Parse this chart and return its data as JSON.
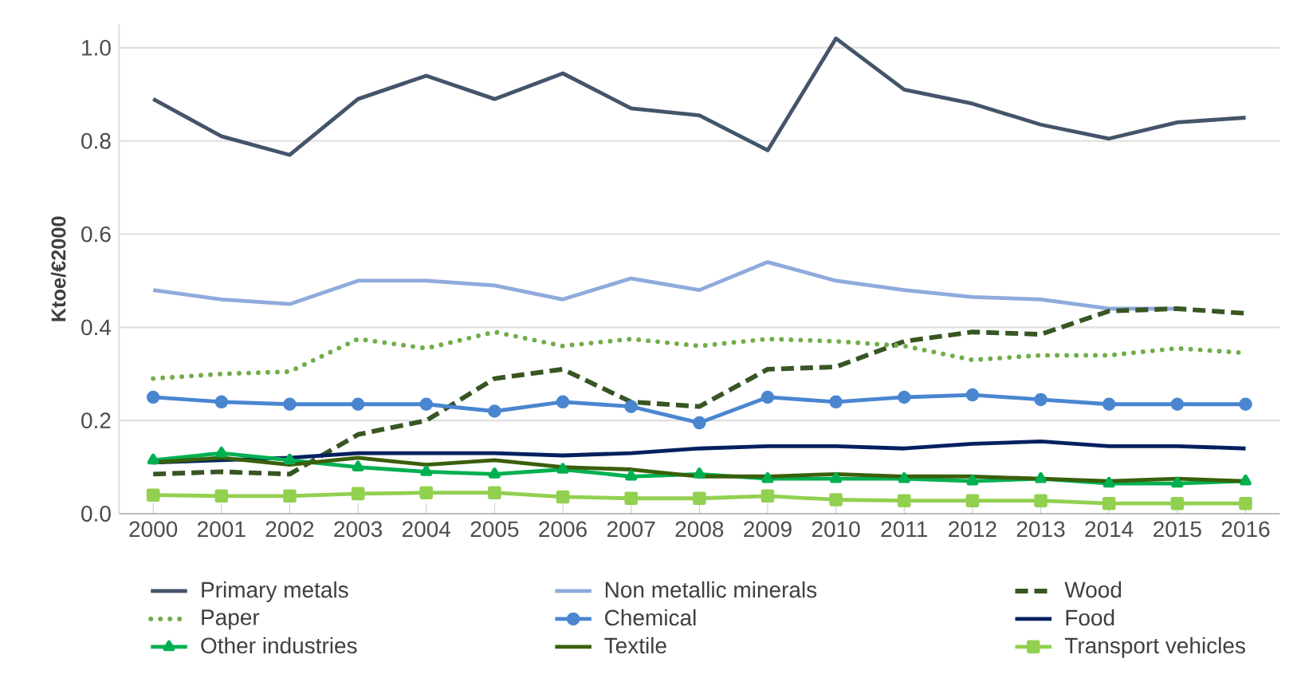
{
  "chart_data": {
    "type": "line",
    "ylabel": "Ktoe/€2000",
    "categories": [
      "2000",
      "2001",
      "2002",
      "2003",
      "2004",
      "2005",
      "2006",
      "2007",
      "2008",
      "2009",
      "2010",
      "2011",
      "2012",
      "2013",
      "2014",
      "2015",
      "2016"
    ],
    "ylim": [
      0,
      1.05
    ],
    "yticks": [
      {
        "value": 0,
        "label": "0.0"
      },
      {
        "value": 0.2,
        "label": "0.2"
      },
      {
        "value": 0.4,
        "label": "0.4"
      },
      {
        "value": 0.6,
        "label": "0.6"
      },
      {
        "value": 0.8,
        "label": "0.8"
      },
      {
        "value": 1.0,
        "label": "1.0"
      }
    ],
    "grid": "y",
    "legend": "bottom",
    "series": [
      {
        "name": "Primary metals",
        "color": "#44546a",
        "marker": "none",
        "line_style": "solid",
        "values": [
          0.89,
          0.81,
          0.77,
          0.89,
          0.94,
          0.89,
          0.945,
          0.87,
          0.855,
          0.78,
          1.02,
          0.91,
          0.88,
          0.835,
          0.805,
          0.84,
          0.85
        ]
      },
      {
        "name": "Non metallic minerals",
        "color": "#8faadc",
        "marker": "none",
        "line_style": "solid",
        "values": [
          0.48,
          0.46,
          0.45,
          0.5,
          0.5,
          0.49,
          0.46,
          0.505,
          0.48,
          0.54,
          0.5,
          0.48,
          0.465,
          0.46,
          0.44,
          0.44,
          null
        ]
      },
      {
        "name": "Wood",
        "color": "#375623",
        "marker": "none",
        "line_style": "dashed",
        "values": [
          0.085,
          0.09,
          0.085,
          0.17,
          0.2,
          0.29,
          0.31,
          0.24,
          0.23,
          0.31,
          0.315,
          0.37,
          0.39,
          0.385,
          0.435,
          0.44,
          0.43
        ]
      },
      {
        "name": "Paper",
        "color": "#70ad47",
        "marker": "none",
        "line_style": "dotted",
        "values": [
          0.29,
          0.3,
          0.305,
          0.375,
          0.355,
          0.39,
          0.36,
          0.375,
          0.36,
          0.375,
          0.37,
          0.36,
          0.33,
          0.34,
          0.34,
          0.355,
          0.345
        ]
      },
      {
        "name": "Chemical",
        "color": "#4a86d0",
        "marker": "circle",
        "line_style": "solid",
        "values": [
          0.25,
          0.24,
          0.235,
          0.235,
          0.235,
          0.22,
          0.24,
          0.23,
          0.195,
          0.25,
          0.24,
          0.25,
          0.255,
          0.245,
          0.235,
          0.235,
          0.235
        ]
      },
      {
        "name": "Food",
        "color": "#002060",
        "marker": "none",
        "line_style": "solid",
        "values": [
          0.11,
          0.115,
          0.12,
          0.13,
          0.13,
          0.13,
          0.125,
          0.13,
          0.14,
          0.145,
          0.145,
          0.14,
          0.15,
          0.155,
          0.145,
          0.145,
          0.14
        ]
      },
      {
        "name": "Other industries",
        "color": "#00b050",
        "marker": "triangle",
        "line_style": "solid",
        "values": [
          0.115,
          0.13,
          0.115,
          0.1,
          0.09,
          0.085,
          0.095,
          0.08,
          0.085,
          0.075,
          0.075,
          0.075,
          0.07,
          0.075,
          0.065,
          0.065,
          0.07
        ]
      },
      {
        "name": "Textile",
        "color": "#3a5f0b",
        "marker": "none",
        "line_style": "solid",
        "values": [
          0.11,
          0.12,
          0.105,
          0.12,
          0.105,
          0.115,
          0.1,
          0.095,
          0.08,
          0.08,
          0.085,
          0.08,
          0.08,
          0.075,
          0.07,
          0.075,
          0.07
        ]
      },
      {
        "name": "Transport vehicles",
        "color": "#92d050",
        "marker": "square",
        "line_style": "solid",
        "values": [
          0.04,
          0.038,
          0.038,
          0.043,
          0.045,
          0.045,
          0.036,
          0.033,
          0.033,
          0.038,
          0.03,
          0.028,
          0.028,
          0.028,
          0.022,
          0.022,
          0.022
        ]
      }
    ]
  }
}
